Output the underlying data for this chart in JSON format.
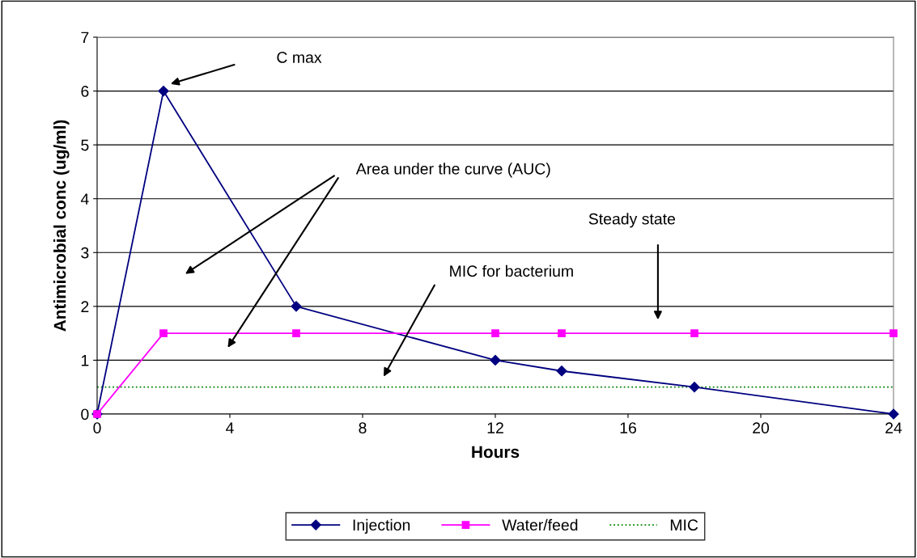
{
  "chart_data": {
    "type": "line",
    "xlabel": "Hours",
    "ylabel": "Antimicrobial conc (ug/ml)",
    "series": [
      {
        "name": "Injection",
        "color": "#000080",
        "marker": "diamond",
        "x": [
          0,
          2,
          6,
          12,
          14,
          18,
          24
        ],
        "values": [
          0,
          6,
          2,
          1,
          0.8,
          0.5,
          0
        ]
      },
      {
        "name": "Water/feed",
        "color": "#ff00ff",
        "marker": "square",
        "x": [
          0,
          2,
          6,
          12,
          14,
          18,
          24
        ],
        "values": [
          0,
          1.5,
          1.5,
          1.5,
          1.5,
          1.5,
          1.5
        ]
      }
    ],
    "ref_lines": [
      {
        "axis": "y",
        "value": 0.5,
        "label": "MIC",
        "color": "#008000",
        "line_style": "dotted"
      }
    ],
    "annotations": [
      "C max",
      "Area under the curve (AUC)",
      "Steady state",
      "MIC for bacterium"
    ],
    "xlim": [
      0,
      24
    ],
    "xticks": [
      0,
      4,
      8,
      12,
      16,
      20,
      24
    ],
    "ylim": [
      0,
      7
    ],
    "yticks": [
      0,
      1,
      2,
      3,
      4,
      5,
      6,
      7
    ],
    "grid": "y",
    "legend": "bottom"
  }
}
